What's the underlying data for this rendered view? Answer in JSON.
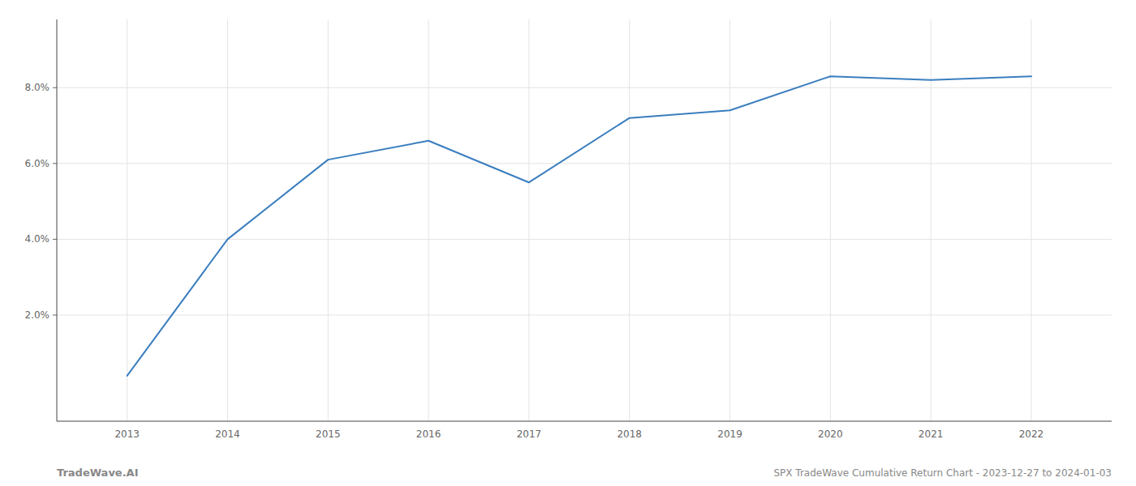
{
  "chart_data": {
    "type": "line",
    "title": "SPX TradeWave Cumulative Return Chart - 2023-12-27 to 2024-01-03",
    "annotations": [
      "TradeWave.AI"
    ],
    "x": [
      2013,
      2014,
      2015,
      2016,
      2017,
      2018,
      2019,
      2020,
      2021,
      2022
    ],
    "values": [
      0.004,
      0.04,
      0.061,
      0.066,
      0.055,
      0.072,
      0.074,
      0.083,
      0.082,
      0.083
    ],
    "color": "#3a7ebf",
    "xlim": [
      2012.3,
      2022.8
    ],
    "xticks": [
      2013,
      2014,
      2015,
      2016,
      2017,
      2018,
      2019,
      2020,
      2021,
      2022
    ],
    "ylim": [
      -0.008,
      0.098
    ],
    "yticks": [
      {
        "value": 0.02,
        "label": "2.0%"
      },
      {
        "value": 0.04,
        "label": "4.0%"
      },
      {
        "value": 0.06,
        "label": "6.0%"
      },
      {
        "value": 0.08,
        "label": "8.0%"
      }
    ],
    "grid": true
  }
}
